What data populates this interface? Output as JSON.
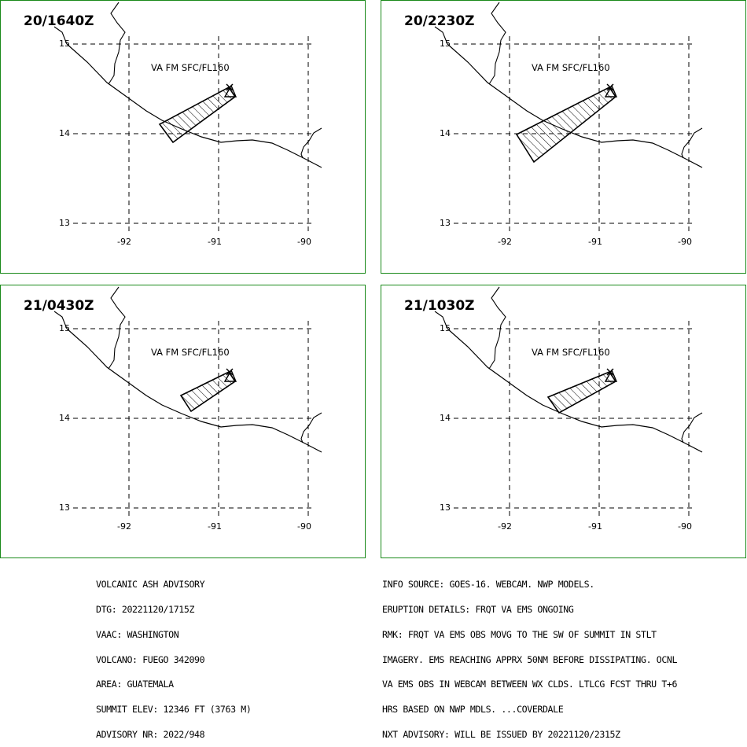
{
  "panels": [
    {
      "time": "20/1640Z",
      "label": "VA FM SFC/FL160",
      "lats": [
        "15",
        "14",
        "13"
      ],
      "lons": [
        "-92",
        "-91",
        "-90"
      ]
    },
    {
      "time": "20/2230Z",
      "label": "VA FM SFC/FL160",
      "lats": [
        "15",
        "14",
        "13"
      ],
      "lons": [
        "-92",
        "-91",
        "-90"
      ]
    },
    {
      "time": "21/0430Z",
      "label": "VA FM SFC/FL160",
      "lats": [
        "15",
        "14",
        "13"
      ],
      "lons": [
        "-92",
        "-91",
        "-90"
      ]
    },
    {
      "time": "21/1030Z",
      "label": "VA FM SFC/FL160",
      "lats": [
        "15",
        "14",
        "13"
      ],
      "lons": [
        "-92",
        "-91",
        "-90"
      ]
    }
  ],
  "advisory_left": [
    "VOLCANIC ASH ADVISORY",
    "DTG: 20221120/1715Z",
    "VAAC: WASHINGTON",
    "VOLCANO: FUEGO 342090",
    "AREA: GUATEMALA",
    "SUMMIT ELEV: 12346 FT (3763 M)",
    "ADVISORY NR: 2022/948"
  ],
  "advisory_right": [
    "INFO SOURCE: GOES-16. WEBCAM. NWP MODELS.",
    "ERUPTION DETAILS: FRQT VA EMS ONGOING",
    "RMK: FRQT VA EMS OBS MOVG TO THE SW OF SUMMIT IN STLT",
    "IMAGERY. EMS REACHING APPRX 50NM BEFORE DISSIPATING. OCNL",
    "VA EMS OBS IN WEBCAM BETWEEN WX CLDS. LTLCG FCST THRU T+6",
    "HRS BASED ON NWP MDLS. ...COVERDALE",
    "NXT ADVISORY: WILL BE ISSUED BY 20221120/2315Z"
  ],
  "colors": {
    "border": "#1a8a1a",
    "line": "#000000"
  }
}
